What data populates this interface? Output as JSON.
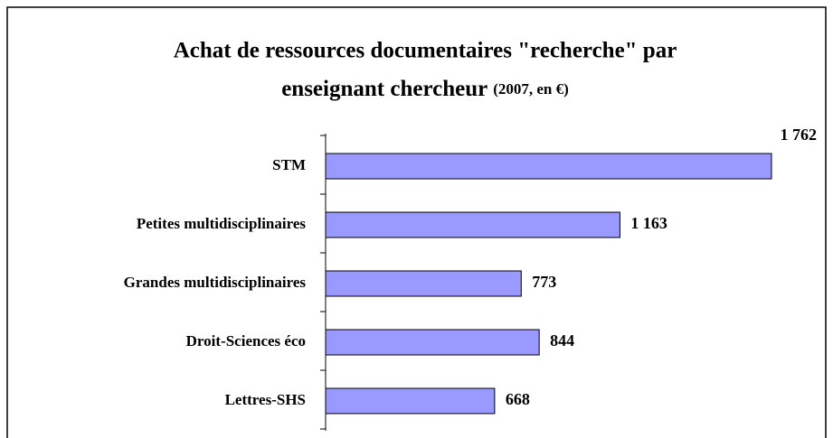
{
  "chart_data": {
    "type": "bar",
    "orientation": "horizontal",
    "title": "Achat de ressources documentaires \"recherche\" par",
    "title_line2": "enseignant chercheur",
    "title_note": "(2007, en €)",
    "categories": [
      "STM",
      "Petites multidisciplinaires",
      "Grandes multidisciplinaires",
      "Droit-Sciences éco",
      "Lettres-SHS"
    ],
    "values": [
      1762,
      1163,
      773,
      844,
      668
    ],
    "value_labels": [
      "1 762",
      "1 163",
      "773",
      "844",
      "668"
    ],
    "color": "#9999ff"
  }
}
